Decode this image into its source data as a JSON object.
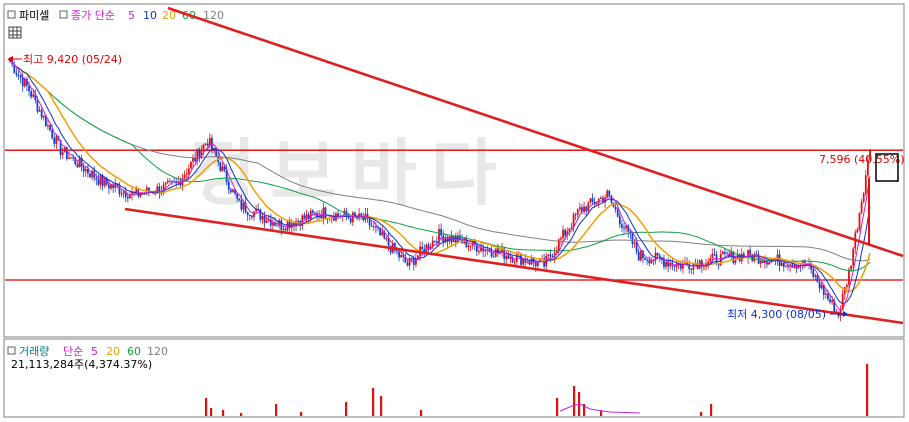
{
  "chart_data": [
    {
      "type": "candlestick",
      "panel": "price",
      "legend": {
        "stock_name": "파미셀",
        "ma_label": "종가 단순",
        "periods": [
          "5",
          "10",
          "20",
          "60",
          "120"
        ],
        "colors": [
          "#d020d0",
          "#1030d0",
          "#f0a000",
          "#10a040",
          "#808080"
        ]
      },
      "annotations": {
        "high_label": "최고 9,420 (05/24)",
        "low_label": "최저 4,300 (08/05)",
        "current_label": "7,596 (40.55%)"
      },
      "watermark": "정보바다",
      "ylim": [
        4000,
        10000
      ],
      "candles_overview": {
        "points": [
          [
            0,
            9420
          ],
          [
            10,
            8800
          ],
          [
            25,
            7600
          ],
          [
            45,
            6950
          ],
          [
            60,
            6700
          ],
          [
            80,
            6900
          ],
          [
            95,
            7800
          ],
          [
            110,
            6500
          ],
          [
            130,
            6100
          ],
          [
            150,
            6350
          ],
          [
            170,
            6200
          ],
          [
            190,
            5300
          ],
          [
            205,
            5900
          ],
          [
            225,
            5650
          ],
          [
            255,
            5300
          ],
          [
            272,
            6400
          ],
          [
            285,
            6700
          ],
          [
            300,
            5500
          ],
          [
            320,
            5300
          ],
          [
            350,
            5500
          ],
          [
            380,
            5300
          ],
          [
            395,
            4300
          ],
          [
            400,
            5150
          ],
          [
            410,
            7596
          ]
        ]
      },
      "reference_lines": [
        {
          "kind": "horizontal",
          "value": 7596,
          "color": "#e00000"
        },
        {
          "kind": "horizontal",
          "value": 5000,
          "color": "#e00000"
        },
        {
          "kind": "trend",
          "color": "#e02020"
        },
        {
          "kind": "trend",
          "color": "#e02020"
        }
      ]
    },
    {
      "type": "bar",
      "panel": "volume",
      "legend": {
        "label": "거래량",
        "ma_label": "단순",
        "periods": [
          "5",
          "20",
          "60",
          "120"
        ],
        "colors": [
          "#d020d0",
          "#f0a000",
          "#10a040",
          "#808080"
        ]
      },
      "volume_text": "21,113,284주(4,374.37%)"
    }
  ]
}
